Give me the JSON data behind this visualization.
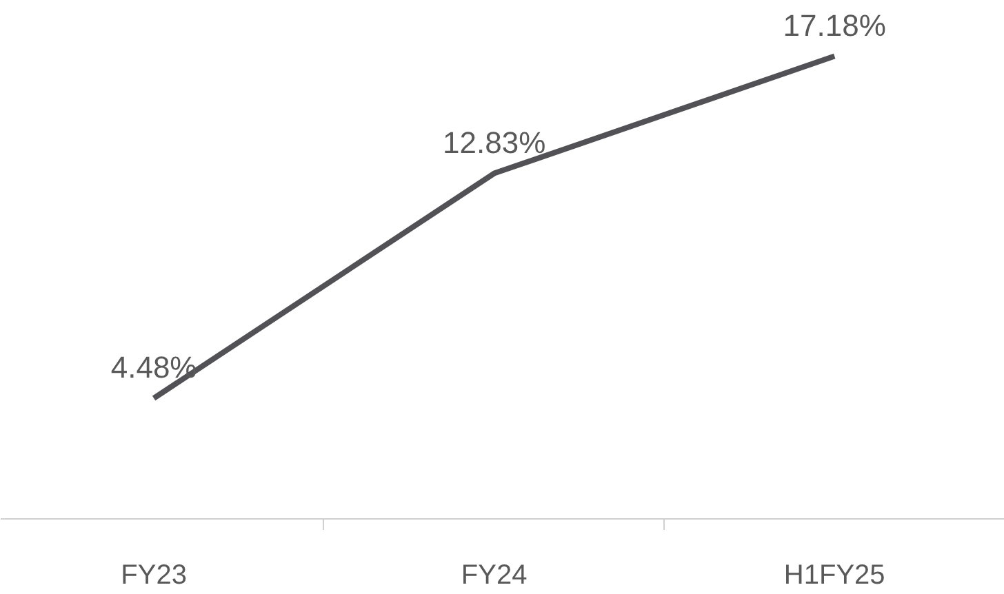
{
  "chart_data": {
    "type": "line",
    "categories": [
      "FY23",
      "FY24",
      "H1FY25"
    ],
    "series": [
      {
        "color": "#525156",
        "values": [
          4.48,
          12.83,
          17.18
        ],
        "value_labels": [
          "4.48%",
          "12.83%",
          "17.18%"
        ]
      }
    ],
    "tick_labels": "x",
    "grid": false,
    "marker": "none",
    "line_style": "solid"
  }
}
